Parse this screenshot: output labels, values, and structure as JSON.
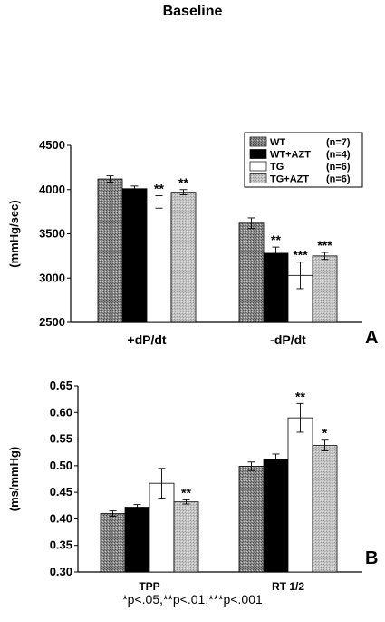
{
  "title": "Baseline",
  "footnote": "*p<.05,**p<.01,***p<.001",
  "chart_data": [
    {
      "type": "bar",
      "panel": "A",
      "ylabel": "(mmHg/sec)",
      "ylim": [
        2500,
        4500
      ],
      "yticks": [
        2500,
        3000,
        3500,
        4000,
        4500
      ],
      "categories": [
        "+dP/dt",
        "-dP/dt"
      ],
      "series": [
        {
          "name": "WT",
          "n_label": "(n=7)",
          "values": [
            4120,
            3620
          ],
          "errors": [
            35,
            60
          ]
        },
        {
          "name": "WT+AZT",
          "n_label": "(n=4)",
          "values": [
            4010,
            3280
          ],
          "errors": [
            30,
            70
          ]
        },
        {
          "name": "TG",
          "n_label": "(n=6)",
          "values": [
            3860,
            3030
          ],
          "errors": [
            70,
            150
          ]
        },
        {
          "name": "TG+AZT",
          "n_label": "(n=6)",
          "values": [
            3970,
            3250
          ],
          "errors": [
            30,
            40
          ]
        }
      ],
      "significance": [
        [
          "",
          "",
          "**",
          "**"
        ],
        [
          "",
          "**",
          "***",
          "***"
        ]
      ],
      "legend": "top-right",
      "grid": false
    },
    {
      "type": "bar",
      "panel": "B",
      "ylabel": "(ms/mmHg)",
      "ylim": [
        0.3,
        0.65
      ],
      "yticks": [
        0.3,
        0.35,
        0.4,
        0.45,
        0.5,
        0.55,
        0.6,
        0.65
      ],
      "categories": [
        "TPP",
        "RT 1/2"
      ],
      "series": [
        {
          "name": "WT",
          "values": [
            0.41,
            0.499
          ],
          "errors": [
            0.005,
            0.008
          ]
        },
        {
          "name": "WT+AZT",
          "values": [
            0.422,
            0.512
          ],
          "errors": [
            0.005,
            0.01
          ]
        },
        {
          "name": "TG",
          "values": [
            0.467,
            0.59
          ],
          "errors": [
            0.028,
            0.027
          ]
        },
        {
          "name": "TG+AZT",
          "values": [
            0.432,
            0.538
          ],
          "errors": [
            0.004,
            0.01
          ]
        }
      ],
      "significance": [
        [
          "",
          "",
          "",
          "**"
        ],
        [
          "",
          "",
          "**",
          "*"
        ]
      ],
      "grid": false
    }
  ]
}
